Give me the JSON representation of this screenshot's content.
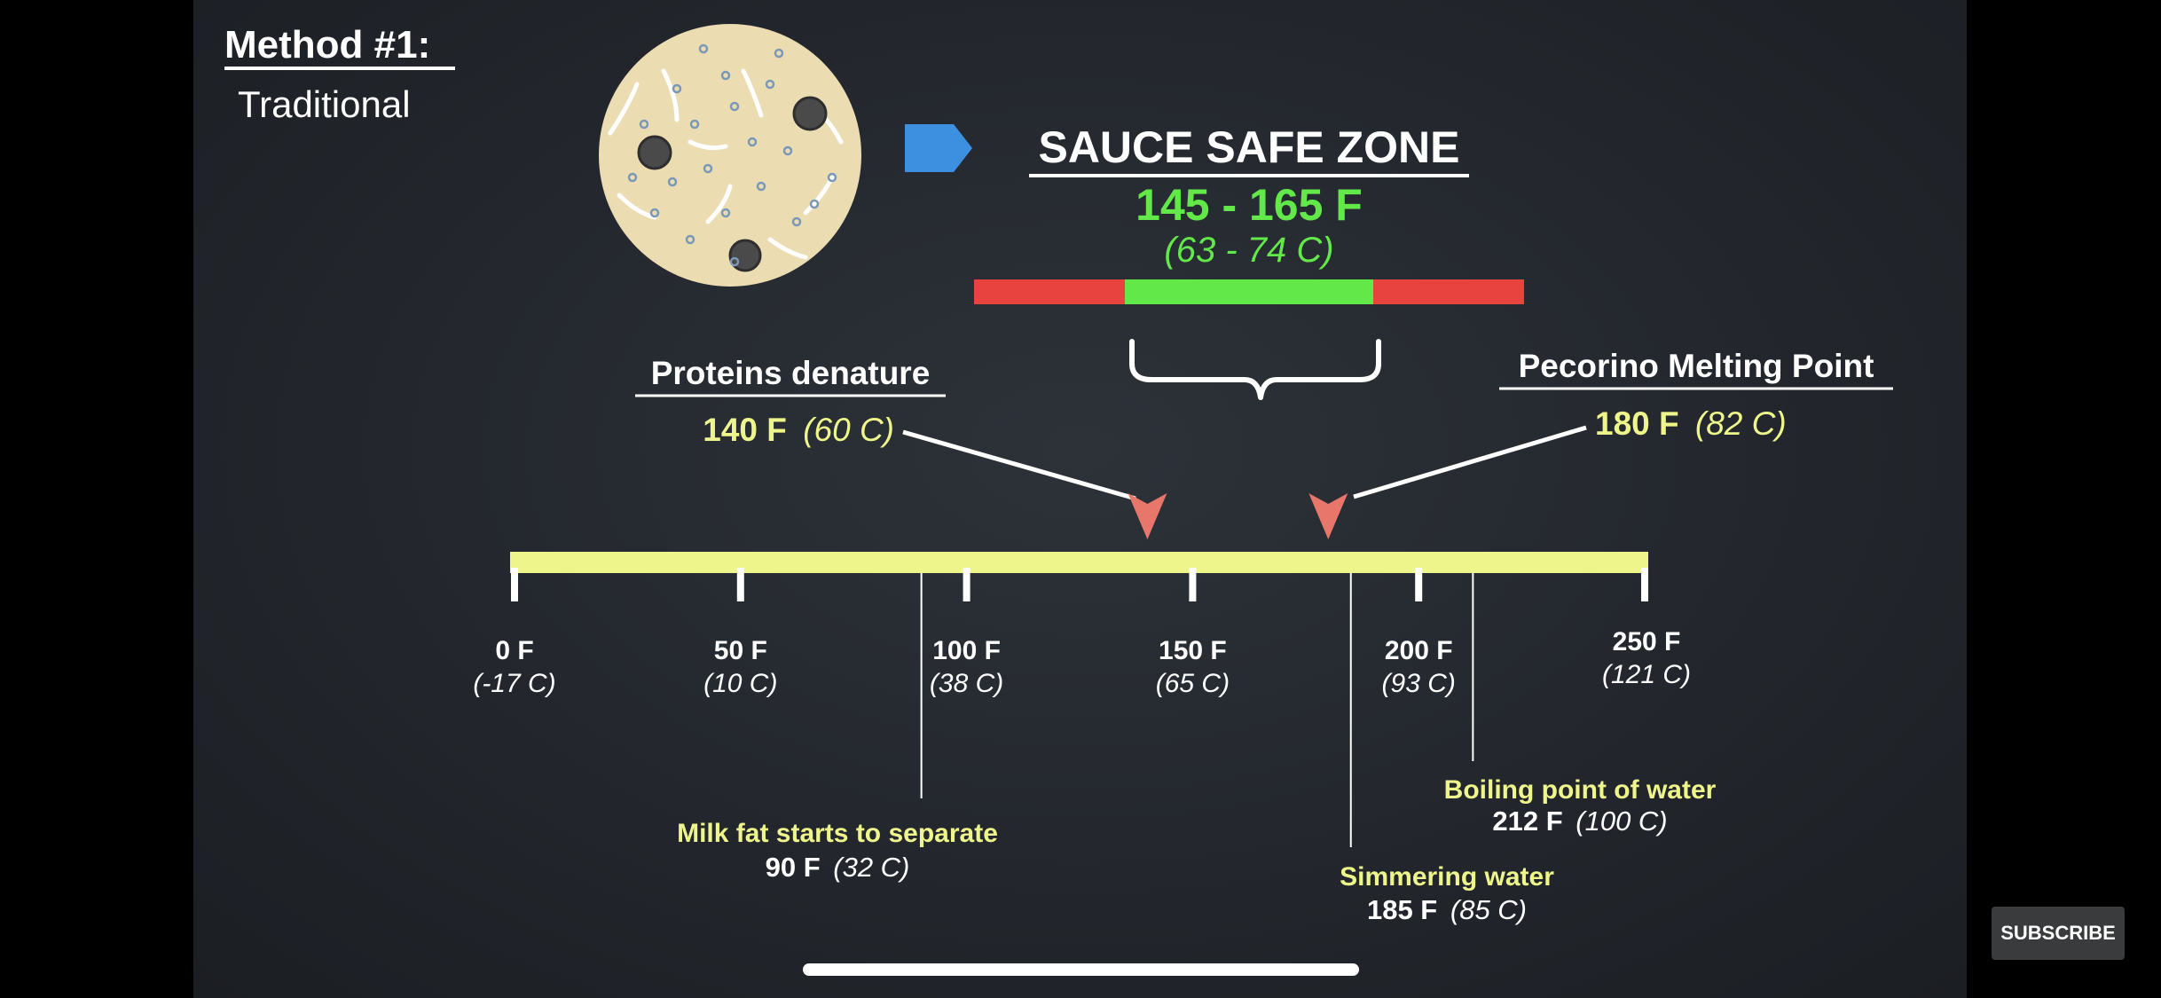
{
  "method": {
    "title": "Method #1:",
    "subtitle": "Traditional"
  },
  "safe_zone": {
    "title": "SAUCE SAFE ZONE",
    "range_f": "145 - 165 F",
    "range_c": "(63 - 74 C)",
    "range_min_f": 145,
    "range_max_f": 165
  },
  "callouts": {
    "proteins": {
      "label": "Proteins denature",
      "value_f": "140 F",
      "value_c": "(60 C)",
      "temp_f": 140
    },
    "pecorino": {
      "label": "Pecorino Melting Point",
      "value_f": "180 F",
      "value_c": "(82 C)",
      "temp_f": 180
    },
    "milkfat": {
      "label": "Milk fat starts to separate",
      "value_f": "90 F",
      "value_c": "(32 C)",
      "temp_f": 90
    },
    "simmering": {
      "label": "Simmering water",
      "value_f": "185 F",
      "value_c": "(85 C)",
      "temp_f": 185
    },
    "boiling": {
      "label": "Boiling point of water",
      "value_f": "212 F",
      "value_c": "(100 C)",
      "temp_f": 212
    }
  },
  "scale": {
    "min_f": 0,
    "max_f": 250,
    "ticks": [
      {
        "value": 0,
        "f": "0 F",
        "c": "(-17 C)"
      },
      {
        "value": 50,
        "f": "50 F",
        "c": "(10 C)"
      },
      {
        "value": 100,
        "f": "100 F",
        "c": "(38 C)"
      },
      {
        "value": 150,
        "f": "150 F",
        "c": "(65 C)"
      },
      {
        "value": 200,
        "f": "200 F",
        "c": "(93 C)"
      },
      {
        "value": 250,
        "f": "250 F",
        "c": "(121 C)"
      }
    ]
  },
  "colors": {
    "bar": "#eef58a",
    "label_yellow": "#eef58a",
    "safe_green": "#63e84a",
    "danger_red": "#e8433e",
    "marker_salmon": "#e8766a",
    "arrow_blue": "#3d8fe0",
    "white": "#ffffff"
  },
  "overlay": {
    "subscribe": "SUBSCRIBE"
  }
}
